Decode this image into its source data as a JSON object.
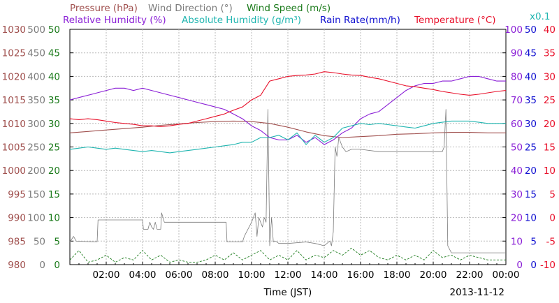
{
  "chart_data": {
    "type": "line",
    "legend": {
      "line1": [
        {
          "label": "Pressure (hPa)",
          "color": "#a0504e"
        },
        {
          "label": "Wind Direction (°)",
          "color": "#7b7b7b"
        },
        {
          "label": "Wind Speed (m/s)",
          "color": "#1a7a1a"
        }
      ],
      "line2": [
        {
          "label": "Relative Humidity (%)",
          "color": "#8a1fd6"
        },
        {
          "label": "Absolute Humidity (g/m³)",
          "color": "#20b5b0"
        },
        {
          "label": "Rain Rate(mm/h)",
          "color": "#1010d0"
        },
        {
          "label": "Temperature (°C)",
          "color": "#e8102a"
        }
      ],
      "multiplier": "x0.1"
    },
    "xlabel": "Time (JST)",
    "date": "2013-11-12",
    "x_ticks": [
      "02:00",
      "04:00",
      "06:00",
      "08:00",
      "10:00",
      "12:00",
      "14:00",
      "16:00",
      "18:00",
      "20:00",
      "22:00",
      "00:00"
    ],
    "axes": {
      "pressure": {
        "color": "#a0504e",
        "ticks": [
          "1030",
          "1025",
          "1020",
          "1015",
          "1010",
          "1005",
          "1000",
          "995",
          "990",
          "985",
          "980"
        ],
        "ylim": [
          980,
          1030
        ]
      },
      "wind_direction": {
        "color": "#7b7b7b",
        "ticks": [
          "500",
          "450",
          "400",
          "350",
          "300",
          "250",
          "200",
          "150",
          "100",
          "50",
          "0"
        ],
        "ylim": [
          0,
          500
        ]
      },
      "wind_speed": {
        "color": "#1a7a1a",
        "ticks": [
          "50",
          "45",
          "40",
          "35",
          "30",
          "25",
          "20",
          "15",
          "10",
          "5",
          "0"
        ],
        "ylim": [
          0,
          50
        ]
      },
      "relative_humidity": {
        "color": "#8a1fd6",
        "ticks": [
          "100",
          "90",
          "80",
          "70",
          "60",
          "50",
          "40",
          "30",
          "20",
          "10",
          "0"
        ],
        "ylim": [
          0,
          100
        ]
      },
      "rain_rate": {
        "color": "#1010d0",
        "ticks": [
          "50",
          "45",
          "40",
          "35",
          "30",
          "25",
          "20",
          "15",
          "10",
          "5",
          "0"
        ],
        "ylim": [
          0,
          50
        ]
      },
      "temperature": {
        "color": "#e8102a",
        "ticks": [
          "40",
          "35",
          "30",
          "25",
          "20",
          "15",
          "10",
          "5",
          "0",
          "-5",
          "-10"
        ],
        "ylim": [
          -10,
          40
        ]
      }
    },
    "series": [
      {
        "name": "Pressure (hPa)",
        "axis": "pressure",
        "color": "#a0504e",
        "x": [
          0,
          1,
          2,
          3,
          4,
          5,
          6,
          7,
          8,
          9,
          10,
          11,
          12,
          13,
          14,
          15,
          16,
          17,
          18,
          19,
          20,
          21,
          22,
          23,
          24
        ],
        "y": [
          1008.0,
          1008.3,
          1008.6,
          1008.9,
          1009.2,
          1009.6,
          1009.9,
          1010.2,
          1010.4,
          1010.5,
          1010.4,
          1010.0,
          1009.2,
          1008.2,
          1007.4,
          1007.0,
          1007.2,
          1007.4,
          1007.7,
          1007.8,
          1008.0,
          1008.1,
          1008.1,
          1008.0,
          1008.0
        ]
      },
      {
        "name": "Wind Direction (°)",
        "axis": "wind_direction",
        "color": "#7b7b7b",
        "x": [
          0,
          0.2,
          0.35,
          1.5,
          1.55,
          4.0,
          4.05,
          4.3,
          4.4,
          4.5,
          4.6,
          4.7,
          4.8,
          5.0,
          5.05,
          5.2,
          5.3,
          8.6,
          8.65,
          9.5,
          9.6,
          10.0,
          10.1,
          10.2,
          10.3,
          10.4,
          10.5,
          10.6,
          10.7,
          10.8,
          10.9,
          11.0,
          11.1,
          11.2,
          11.3,
          11.4,
          11.5,
          12.0,
          13.0,
          13.5,
          14.0,
          14.3,
          14.4,
          14.5,
          14.6,
          14.7,
          14.8,
          15.0,
          15.2,
          15.5,
          16.0,
          17.0,
          19.0,
          20.5,
          20.6,
          20.7,
          20.8,
          21.0,
          21.5,
          22.0,
          23.0,
          24.0
        ],
        "y": [
          48,
          60,
          50,
          48,
          95,
          95,
          75,
          75,
          90,
          80,
          75,
          90,
          75,
          75,
          110,
          90,
          90,
          90,
          48,
          48,
          60,
          90,
          100,
          110,
          60,
          100,
          90,
          80,
          100,
          90,
          330,
          40,
          100,
          48,
          50,
          48,
          45,
          45,
          48,
          45,
          40,
          50,
          40,
          70,
          250,
          230,
          270,
          250,
          240,
          245,
          245,
          240,
          240,
          240,
          250,
          330,
          40,
          25,
          25,
          25,
          25,
          25
        ]
      },
      {
        "name": "Wind Speed (m/s)",
        "axis": "wind_speed",
        "color": "#1a7a1a",
        "x": [
          0,
          0.5,
          1,
          1.5,
          2,
          2.5,
          3,
          3.5,
          4,
          4.5,
          5,
          5.5,
          6,
          6.5,
          7,
          7.5,
          8,
          8.5,
          9,
          9.5,
          10,
          10.5,
          11,
          11.5,
          12,
          12.5,
          13,
          13.5,
          14,
          14.5,
          15,
          15.5,
          16,
          16.5,
          17,
          17.5,
          18,
          18.5,
          19,
          19.5,
          20,
          20.5,
          21,
          21.5,
          22,
          22.5,
          23,
          23.5,
          24
        ],
        "y": [
          1,
          3,
          0.5,
          1,
          2,
          0.5,
          1.5,
          1,
          3,
          1,
          2,
          0.5,
          1,
          0.5,
          0.5,
          1,
          2,
          1,
          2.5,
          1,
          2,
          3,
          1,
          2,
          1,
          3,
          1,
          2,
          1.5,
          3,
          2,
          3.5,
          2,
          3,
          1.5,
          1,
          2,
          1,
          2,
          1,
          3,
          1.5,
          2,
          1,
          2,
          1.5,
          1,
          1,
          1
        ]
      },
      {
        "name": "Relative Humidity (%)",
        "axis": "relative_humidity",
        "color": "#8a1fd6",
        "x": [
          0,
          0.5,
          1,
          1.5,
          2,
          2.5,
          3,
          3.5,
          4,
          4.5,
          5,
          5.5,
          6,
          6.5,
          7,
          7.5,
          8,
          8.5,
          9,
          9.5,
          10,
          10.5,
          11,
          11.5,
          12,
          12.5,
          13,
          13.5,
          14,
          14.5,
          15,
          15.5,
          16,
          16.5,
          17,
          17.5,
          18,
          18.5,
          19,
          19.5,
          20,
          20.5,
          21,
          21.5,
          22,
          22.5,
          23,
          23.5,
          24
        ],
        "y": [
          70,
          71,
          72,
          73,
          74,
          75,
          75,
          74,
          75,
          74,
          73,
          72,
          71,
          70,
          69,
          68,
          67,
          66,
          64,
          62,
          59,
          57,
          54,
          53,
          53,
          55,
          52,
          54,
          51,
          53,
          56,
          58,
          62,
          64,
          65,
          68,
          71,
          74,
          76,
          77,
          77,
          78,
          78,
          79,
          80,
          80,
          79,
          78,
          78
        ]
      },
      {
        "name": "Absolute Humidity (g/m³)",
        "axis": "relative_humidity",
        "color": "#20b5b0",
        "x": [
          0,
          0.5,
          1,
          1.5,
          2,
          2.5,
          3,
          3.5,
          4,
          4.5,
          5,
          5.5,
          6,
          6.5,
          7,
          7.5,
          8,
          8.5,
          9,
          9.5,
          10,
          10.5,
          11,
          11.5,
          12,
          12.5,
          13,
          13.5,
          14,
          14.5,
          15,
          15.5,
          16,
          16.5,
          17,
          17.5,
          18,
          18.5,
          19,
          19.5,
          20,
          20.5,
          21,
          21.5,
          22,
          22.5,
          23,
          23.5,
          24
        ],
        "y": [
          49,
          49.5,
          50,
          49.5,
          49,
          49.5,
          49,
          48.5,
          48,
          48.5,
          48,
          47.5,
          48,
          48.5,
          49,
          49.5,
          50,
          50.5,
          51,
          52,
          52,
          54,
          54,
          55,
          53,
          56,
          51,
          55,
          52,
          54,
          58,
          59,
          60,
          59.5,
          60,
          59.5,
          59,
          58.5,
          58,
          59,
          60,
          60.5,
          61,
          61,
          61,
          60.5,
          60,
          60,
          60
        ]
      },
      {
        "name": "Temperature (°C)",
        "axis": "temperature",
        "color": "#e8102a",
        "x": [
          0,
          0.5,
          1,
          1.5,
          2,
          2.5,
          3,
          3.5,
          4,
          4.5,
          5,
          5.5,
          6,
          6.5,
          7,
          7.5,
          8,
          8.5,
          9,
          9.5,
          10,
          10.5,
          11,
          11.5,
          12,
          12.5,
          13,
          13.5,
          14,
          14.5,
          15,
          15.5,
          16,
          16.5,
          17,
          17.5,
          18,
          18.5,
          19,
          19.5,
          20,
          20.5,
          21,
          21.5,
          22,
          22.5,
          23,
          23.5,
          24
        ],
        "y": [
          21.0,
          20.8,
          21.0,
          20.8,
          20.5,
          20.2,
          20.0,
          19.8,
          19.5,
          19.5,
          19.3,
          19.5,
          19.8,
          20.0,
          20.5,
          21.0,
          21.5,
          22.0,
          22.8,
          23.5,
          25.0,
          26.0,
          29.0,
          29.5,
          30.0,
          30.2,
          30.3,
          30.5,
          31.0,
          30.8,
          30.5,
          30.3,
          30.2,
          29.8,
          29.5,
          29.0,
          28.5,
          28.0,
          27.8,
          27.5,
          27.2,
          26.8,
          26.5,
          26.2,
          26.0,
          26.2,
          26.5,
          26.8,
          27.0
        ]
      }
    ]
  }
}
